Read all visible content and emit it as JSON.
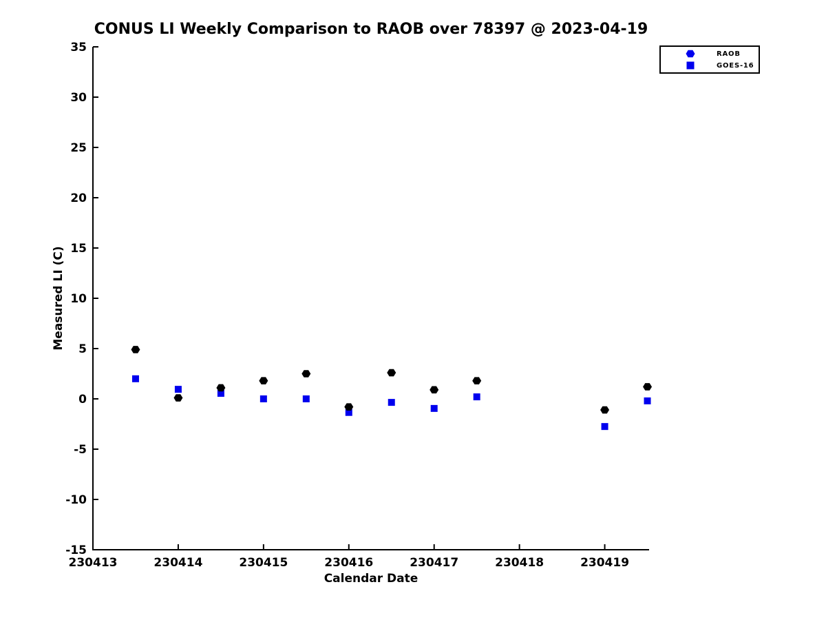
{
  "window": {
    "background": "#ffffff",
    "axis_color": "#000000",
    "text_color": "#000000"
  },
  "legend": {
    "marker_color": "#0000ee",
    "position": "upper right"
  },
  "chart_data": {
    "type": "scatter",
    "title": "CONUS LI Weekly Comparison to RAOB over 78397 @ 2023-04-19",
    "xlabel": "Calendar Date",
    "ylabel": "Measured LI (C)",
    "xlim": [
      230413,
      230419.52
    ],
    "ylim": [
      -15,
      35
    ],
    "x_ticks": [
      230413,
      230414,
      230415,
      230416,
      230417,
      230418,
      230419
    ],
    "y_ticks": [
      -15,
      -10,
      -5,
      0,
      5,
      10,
      15,
      20,
      25,
      30,
      35
    ],
    "grid": false,
    "legend_position": "upper right",
    "series": [
      {
        "name": "RAOB",
        "marker": "hexagon",
        "color": "#000000",
        "x": [
          230413.5,
          230414,
          230414.5,
          230415,
          230415.5,
          230416,
          230416.5,
          230417,
          230417.5,
          230419,
          230419.5
        ],
        "y": [
          4.9,
          0.1,
          1.1,
          1.8,
          2.5,
          -0.8,
          2.6,
          0.9,
          1.8,
          -1.1,
          1.2
        ]
      },
      {
        "name": "GOES-16",
        "marker": "square",
        "color": "#0000ee",
        "x": [
          230413.5,
          230414,
          230414.5,
          230415,
          230415.5,
          230416,
          230416.5,
          230417,
          230417.5,
          230419,
          230419.5
        ],
        "y": [
          2.0,
          0.95,
          0.55,
          0.0,
          0.0,
          -1.35,
          -0.35,
          -0.95,
          0.2,
          -2.75,
          -0.2
        ]
      }
    ]
  }
}
